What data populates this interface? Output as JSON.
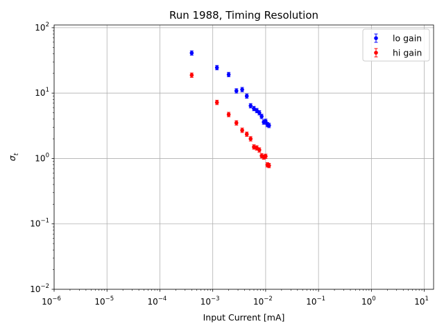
{
  "chart_data": {
    "type": "scatter",
    "title": "Run 1988, Timing Resolution",
    "xlabel": "Input Current [mA]",
    "ylabel": "σ_t",
    "xscale": "log",
    "yscale": "log",
    "xlim": [
      1e-06,
      15
    ],
    "ylim": [
      0.01,
      110
    ],
    "grid": true,
    "legend_position": "top-right",
    "x_ticks": [
      {
        "value": 1e-06,
        "base": "10",
        "exp": "−6"
      },
      {
        "value": 1e-05,
        "base": "10",
        "exp": "−5"
      },
      {
        "value": 0.0001,
        "base": "10",
        "exp": "−4"
      },
      {
        "value": 0.001,
        "base": "10",
        "exp": "−3"
      },
      {
        "value": 0.01,
        "base": "10",
        "exp": "−2"
      },
      {
        "value": 0.1,
        "base": "10",
        "exp": "−1"
      },
      {
        "value": 1,
        "base": "10",
        "exp": "0"
      },
      {
        "value": 10,
        "base": "10",
        "exp": "1"
      }
    ],
    "y_ticks": [
      {
        "value": 0.01,
        "base": "10",
        "exp": "−2"
      },
      {
        "value": 0.1,
        "base": "10",
        "exp": "−1"
      },
      {
        "value": 1,
        "base": "10",
        "exp": "0"
      },
      {
        "value": 10,
        "base": "10",
        "exp": "1"
      },
      {
        "value": 100,
        "base": "10",
        "exp": "2"
      }
    ],
    "series": [
      {
        "name": "lo gain",
        "color": "#0000ff",
        "x": [
          0.0004,
          0.0012,
          0.002,
          0.0028,
          0.0036,
          0.0044,
          0.0052,
          0.006,
          0.0068,
          0.0076,
          0.0084,
          0.0092,
          0.01,
          0.0108,
          0.0116
        ],
        "y": [
          41,
          24.5,
          19.2,
          10.8,
          11.3,
          9.0,
          6.4,
          5.8,
          5.4,
          5.0,
          4.4,
          3.6,
          3.7,
          3.3,
          3.2
        ],
        "yerr": [
          0.08,
          0.08,
          0.08,
          0.08,
          0.08,
          0.08,
          0.08,
          0.08,
          0.08,
          0.08,
          0.08,
          0.08,
          0.08,
          0.08,
          0.08
        ]
      },
      {
        "name": "hi gain",
        "color": "#ff0000",
        "x": [
          0.0004,
          0.0012,
          0.002,
          0.0028,
          0.0036,
          0.0044,
          0.0052,
          0.006,
          0.0068,
          0.0076,
          0.0084,
          0.0092,
          0.01,
          0.0108,
          0.0116
        ],
        "y": [
          18.8,
          7.2,
          4.7,
          3.5,
          2.7,
          2.35,
          2.0,
          1.5,
          1.45,
          1.35,
          1.1,
          1.05,
          1.08,
          0.8,
          0.78
        ],
        "yerr": [
          0.08,
          0.08,
          0.08,
          0.08,
          0.08,
          0.08,
          0.08,
          0.08,
          0.08,
          0.08,
          0.08,
          0.08,
          0.08,
          0.08,
          0.08
        ]
      }
    ]
  }
}
